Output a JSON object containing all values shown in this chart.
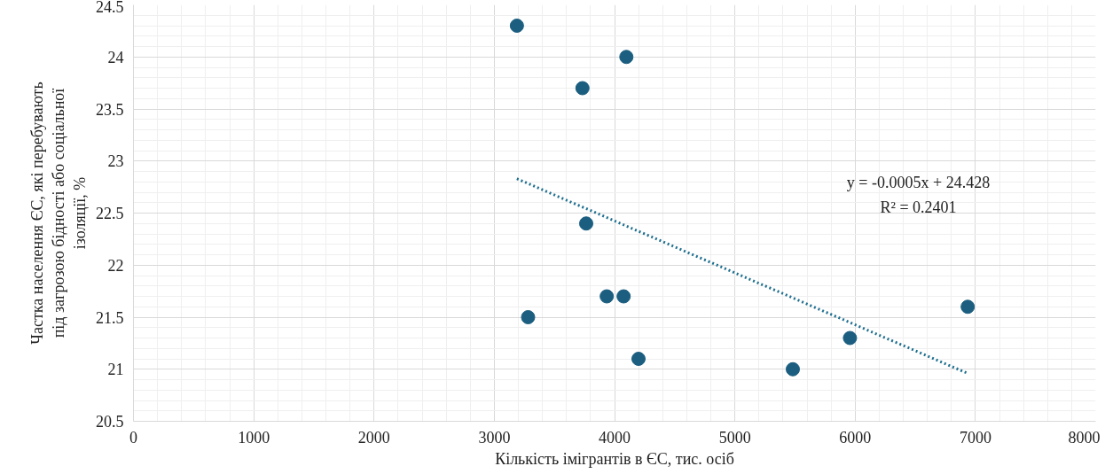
{
  "chart_data": {
    "type": "scatter",
    "xlabel": "Кількість імігрантів в ЄС, тис. осіб",
    "ylabel": "Частка населення ЄС, які перебувають під загрозою бідності або соціальної ізоляції, %",
    "x": [
      3188,
      4098,
      3733,
      3764,
      3281,
      3935,
      4075,
      4199,
      5482,
      5957,
      6936
    ],
    "series": [
      {
        "color": "#1b5e80",
        "values": [
          24.3,
          24.0,
          23.7,
          22.4,
          21.5,
          21.7,
          21.7,
          21.1,
          21.0,
          21.3,
          21.6
        ],
        "marker": "circle"
      },
      {
        "type": "line",
        "color": "#1f6f8f",
        "line_style": "dotted",
        "x": [
          3188,
          6936
        ],
        "values": [
          22.83,
          20.96
        ]
      }
    ],
    "annotations": [
      "y = -0.0005x + 24.428",
      "R² = 0.2401"
    ],
    "xlim": [
      0,
      8000
    ],
    "ylim": [
      20.5,
      24.5
    ],
    "xticks": [
      0,
      1000,
      2000,
      3000,
      4000,
      5000,
      6000,
      7000,
      8000
    ],
    "yticks": [
      20.5,
      21,
      21.5,
      22,
      22.5,
      23,
      23.5,
      24,
      24.5
    ],
    "grid": true
  }
}
